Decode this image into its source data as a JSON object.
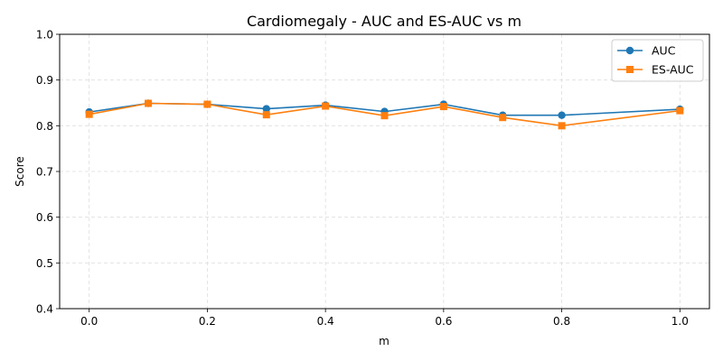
{
  "chart_data": {
    "type": "line",
    "title": "Cardiomegaly - AUC and ES-AUC vs m",
    "xlabel": "m",
    "ylabel": "Score",
    "xlim": [
      -0.05,
      1.05
    ],
    "ylim": [
      0.4,
      1.0
    ],
    "xticks": [
      "0.0",
      "0.2",
      "0.4",
      "0.6",
      "0.8",
      "1.0"
    ],
    "yticks": [
      "0.4",
      "0.5",
      "0.6",
      "0.7",
      "0.8",
      "0.9",
      "1.0"
    ],
    "grid": true,
    "legend_position": "top-right",
    "x": [
      0.0,
      0.1,
      0.2,
      0.3,
      0.4,
      0.5,
      0.6,
      0.7,
      0.8,
      1.0
    ],
    "series": [
      {
        "name": "AUC",
        "color": "#1f77b4",
        "marker": "circle",
        "values": [
          0.83,
          0.849,
          0.847,
          0.837,
          0.845,
          0.831,
          0.847,
          0.823,
          0.823,
          0.836
        ]
      },
      {
        "name": "ES-AUC",
        "color": "#ff7f0e",
        "marker": "square",
        "values": [
          0.825,
          0.849,
          0.847,
          0.824,
          0.843,
          0.822,
          0.842,
          0.818,
          0.8,
          0.833
        ]
      }
    ]
  }
}
